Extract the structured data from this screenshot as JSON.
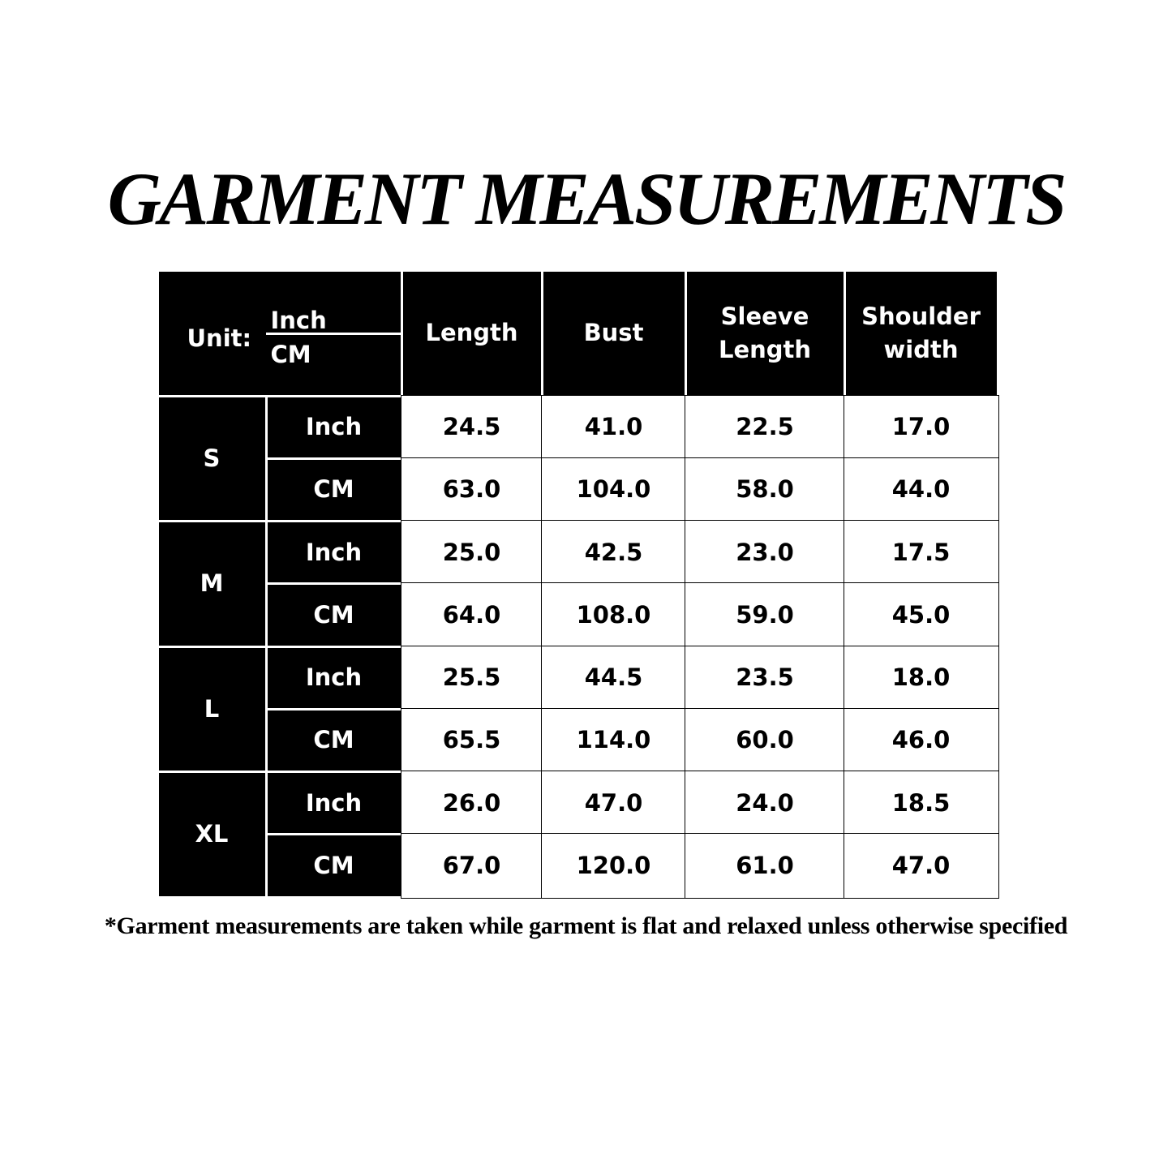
{
  "title": "GARMENT MEASUREMENTS",
  "table": {
    "unit_label": "Unit:",
    "unit_top": "Inch",
    "unit_bottom": "CM",
    "headers": [
      "Length",
      "Bust",
      "Sleeve Length",
      "Shoulder width"
    ],
    "sizes": [
      {
        "size": "S",
        "rows": [
          {
            "unit": "Inch",
            "values": [
              "24.5",
              "41.0",
              "22.5",
              "17.0"
            ]
          },
          {
            "unit": "CM",
            "values": [
              "63.0",
              "104.0",
              "58.0",
              "44.0"
            ]
          }
        ]
      },
      {
        "size": "M",
        "rows": [
          {
            "unit": "Inch",
            "values": [
              "25.0",
              "42.5",
              "23.0",
              "17.5"
            ]
          },
          {
            "unit": "CM",
            "values": [
              "64.0",
              "108.0",
              "59.0",
              "45.0"
            ]
          }
        ]
      },
      {
        "size": "L",
        "rows": [
          {
            "unit": "Inch",
            "values": [
              "25.5",
              "44.5",
              "23.5",
              "18.0"
            ]
          },
          {
            "unit": "CM",
            "values": [
              "65.5",
              "114.0",
              "60.0",
              "46.0"
            ]
          }
        ]
      },
      {
        "size": "XL",
        "rows": [
          {
            "unit": "Inch",
            "values": [
              "26.0",
              "47.0",
              "24.0",
              "18.5"
            ]
          },
          {
            "unit": "CM",
            "values": [
              "67.0",
              "120.0",
              "61.0",
              "47.0"
            ]
          }
        ]
      }
    ]
  },
  "footnote": "*Garment measurements are taken while garment is flat and relaxed unless otherwise specified"
}
